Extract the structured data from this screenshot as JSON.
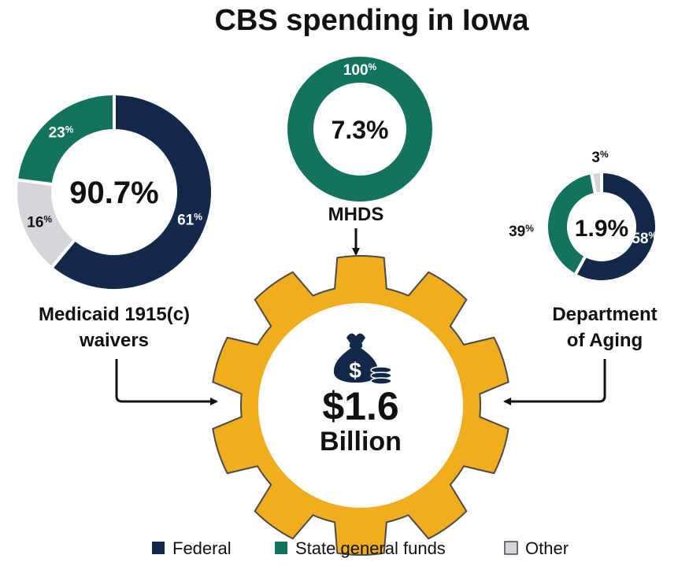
{
  "title": "CBS spending in Iowa",
  "colors": {
    "federal": "#13294b",
    "state": "#13735f",
    "other": "#d4d6da",
    "gear": "#f0ad1d",
    "gear_stroke": "#4a4a4a",
    "ink": "#111111"
  },
  "total": {
    "value": "$1.6",
    "unit": "Billion",
    "icon": "money-bag-icon"
  },
  "chart_data": [
    {
      "type": "pie",
      "name": "Medicaid 1915(c) waivers",
      "label_lines": [
        "Medicaid 1915(c)",
        "waivers"
      ],
      "share_of_total": "90.7%",
      "slices": [
        {
          "category": "Federal",
          "value": 61,
          "label": "61"
        },
        {
          "category": "Other",
          "value": 16,
          "label": "16"
        },
        {
          "category": "State general funds",
          "value": 23,
          "label": "23"
        }
      ]
    },
    {
      "type": "pie",
      "name": "MHDS",
      "label_lines": [
        "MHDS"
      ],
      "share_of_total": "7.3%",
      "slices": [
        {
          "category": "State general funds",
          "value": 100,
          "label": "100"
        }
      ]
    },
    {
      "type": "pie",
      "name": "Department of Aging",
      "label_lines": [
        "Department",
        "of Aging"
      ],
      "share_of_total": "1.9%",
      "slices": [
        {
          "category": "Federal",
          "value": 58,
          "label": "58"
        },
        {
          "category": "State general funds",
          "value": 39,
          "label": "39"
        },
        {
          "category": "Other",
          "value": 3,
          "label": "3"
        }
      ]
    }
  ],
  "legend": [
    {
      "label": "Federal",
      "color_key": "federal"
    },
    {
      "label": "State general funds",
      "color_key": "state"
    },
    {
      "label": "Other",
      "color_key": "other"
    }
  ]
}
